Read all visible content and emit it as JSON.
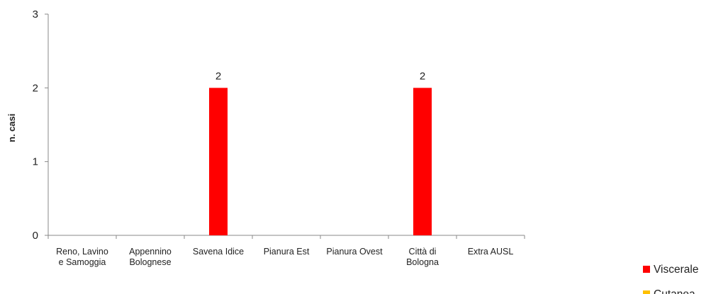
{
  "chart_data": {
    "type": "bar",
    "categories": [
      "Reno, Lavino e Samoggia",
      "Appennino Bolognese",
      "Savena Idice",
      "Pianura Est",
      "Pianura Ovest",
      "Città di Bologna",
      "Extra AUSL"
    ],
    "category_lines": [
      [
        "Reno, Lavino",
        "e Samoggia"
      ],
      [
        "Appennino",
        "Bolognese"
      ],
      [
        "Savena Idice"
      ],
      [
        "Pianura Est"
      ],
      [
        "Pianura Ovest"
      ],
      [
        "Città di",
        "Bologna"
      ],
      [
        "Extra AUSL"
      ]
    ],
    "series": [
      {
        "name": "Viscerale",
        "color": "#ff0000",
        "values": [
          0,
          0,
          2,
          0,
          0,
          2,
          0
        ]
      },
      {
        "name": "Cutanea",
        "color": "#ffc000",
        "values": [
          0,
          0,
          0,
          0,
          0,
          0,
          0
        ]
      }
    ],
    "data_labels": [
      "",
      "",
      "2",
      "",
      "",
      "2",
      ""
    ],
    "xlabel": "",
    "ylabel": "n. casi",
    "ylim": [
      0,
      3
    ],
    "yticks": [
      0,
      1,
      2,
      3
    ],
    "grid": false,
    "legend_position": "bottom-right"
  }
}
